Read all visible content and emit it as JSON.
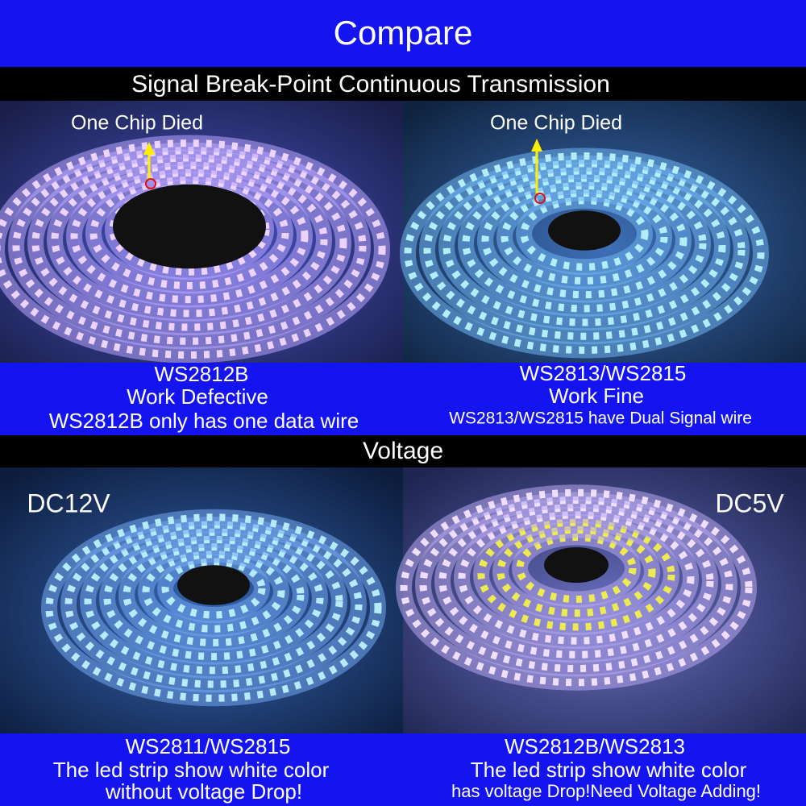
{
  "header": {
    "title": "Compare"
  },
  "sections": [
    {
      "title": "Signal Break-Point Continuous Transmission",
      "panels": [
        {
          "annotation": "One Chip Died",
          "caption": [
            "WS2812B",
            "Work Defective",
            "WS2812B only has one data wire"
          ]
        },
        {
          "annotation": "One Chip Died",
          "caption": [
            "WS2813/WS2815",
            "Work Fine",
            "WS2813/WS2815 have Dual Signal wire"
          ]
        }
      ]
    },
    {
      "title": "Voltage",
      "panels": [
        {
          "annotation": "DC12V",
          "caption": [
            "WS2811/WS2815",
            "The led strip show white color",
            "without voltage Drop!"
          ]
        },
        {
          "annotation": "DC5V",
          "caption": [
            "WS2812B/WS2813",
            "The led strip show white color",
            "has voltage Drop!Need Voltage Adding!"
          ]
        }
      ]
    }
  ]
}
